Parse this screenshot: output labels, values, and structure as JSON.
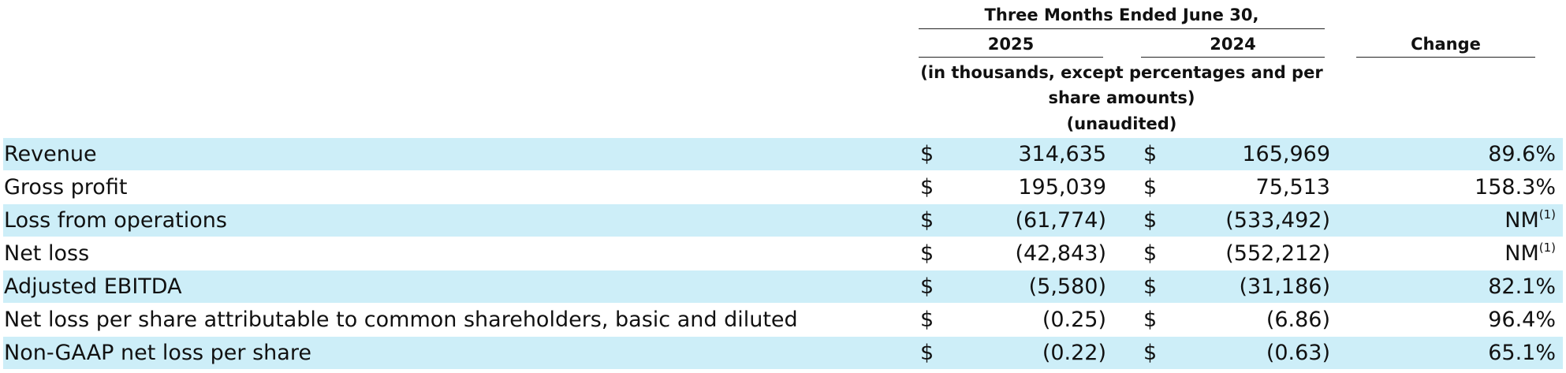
{
  "header": {
    "period": "Three Months Ended June 30,",
    "year_current": "2025",
    "year_prior": "2024",
    "change": "Change",
    "units_line1": "(in thousands, except percentages and per",
    "units_line2": "share amounts)",
    "units_line3": "(unaudited)"
  },
  "rows": [
    {
      "label": "Revenue",
      "cur_symbol": "$",
      "cur": "314,635",
      "prior_symbol": "$",
      "prior": "165,969",
      "change": "89.6%",
      "footnote": ""
    },
    {
      "label": "Gross profit",
      "cur_symbol": "$",
      "cur": "195,039",
      "prior_symbol": "$",
      "prior": "75,513",
      "change": "158.3%",
      "footnote": ""
    },
    {
      "label": "Loss from operations",
      "cur_symbol": "$",
      "cur": "(61,774)",
      "prior_symbol": "$",
      "prior": "(533,492)",
      "change": "NM",
      "footnote": "(1)"
    },
    {
      "label": "Net loss",
      "cur_symbol": "$",
      "cur": "(42,843)",
      "prior_symbol": "$",
      "prior": "(552,212)",
      "change": "NM",
      "footnote": "(1)"
    },
    {
      "label": "Adjusted EBITDA",
      "cur_symbol": "$",
      "cur": "(5,580)",
      "prior_symbol": "$",
      "prior": "(31,186)",
      "change": "82.1%",
      "footnote": ""
    },
    {
      "label": "Net loss per share attributable to common shareholders, basic and diluted",
      "cur_symbol": "$",
      "cur": "(0.25)",
      "prior_symbol": "$",
      "prior": "(6.86)",
      "change": "96.4%",
      "footnote": ""
    },
    {
      "label": "Non-GAAP net loss per share",
      "cur_symbol": "$",
      "cur": "(0.22)",
      "prior_symbol": "$",
      "prior": "(0.63)",
      "change": "65.1%",
      "footnote": ""
    }
  ]
}
